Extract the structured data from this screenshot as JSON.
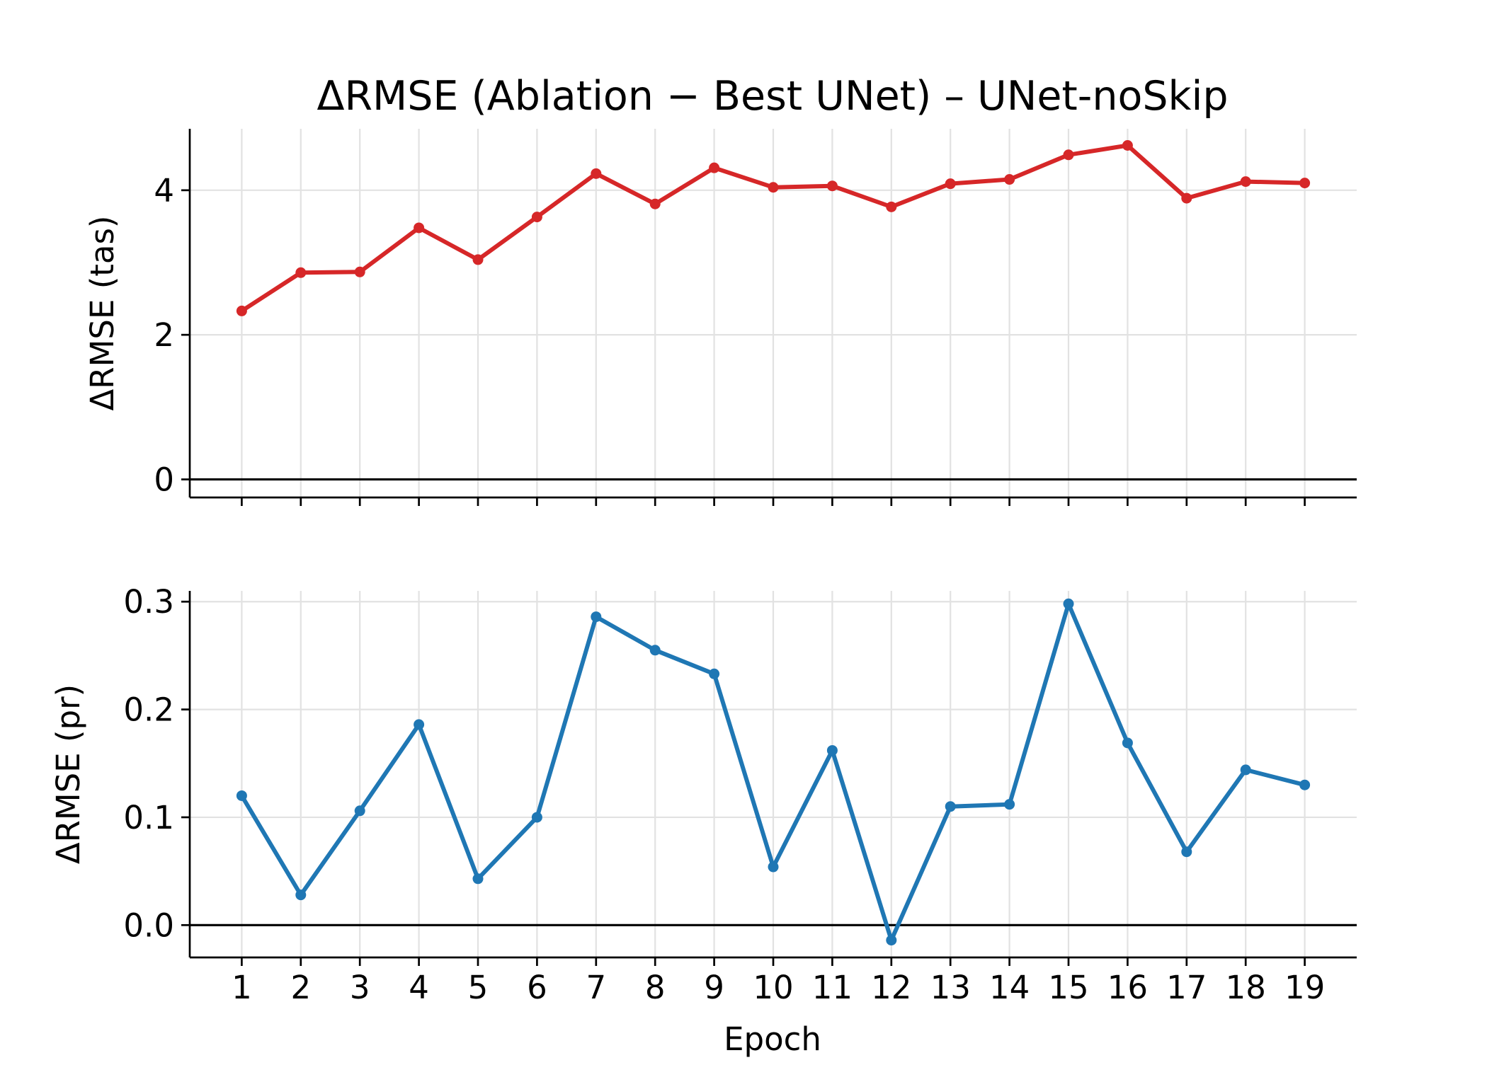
{
  "chart_data": {
    "type": "line",
    "title": "ΔRMSE (Ablation − Best UNet) – UNet-noSkip",
    "xlabel": "Epoch",
    "x": [
      1,
      2,
      3,
      4,
      5,
      6,
      7,
      8,
      9,
      10,
      11,
      12,
      13,
      14,
      15,
      16,
      17,
      18,
      19
    ],
    "grid": true,
    "reference_line": 0,
    "panels": [
      {
        "ylabel": "ΔRMSE (tas)",
        "ylim": [
          -0.25,
          4.85
        ],
        "yticks": [
          0,
          2,
          4
        ],
        "ytick_labels": [
          "0",
          "2",
          "4"
        ],
        "color": "#d62728",
        "values": [
          2.33,
          2.86,
          2.87,
          3.48,
          3.04,
          3.63,
          4.23,
          3.81,
          4.31,
          4.04,
          4.06,
          3.77,
          4.09,
          4.15,
          4.49,
          4.62,
          3.89,
          4.12,
          4.1
        ]
      },
      {
        "ylabel": "ΔRMSE (pr)",
        "ylim": [
          -0.03,
          0.31
        ],
        "yticks": [
          0.0,
          0.1,
          0.2,
          0.3
        ],
        "ytick_labels": [
          "0.0",
          "0.1",
          "0.2",
          "0.3"
        ],
        "color": "#1f77b4",
        "values": [
          0.12,
          0.028,
          0.106,
          0.186,
          0.043,
          0.1,
          0.286,
          0.255,
          0.233,
          0.054,
          0.162,
          -0.014,
          0.11,
          0.112,
          0.298,
          0.169,
          0.068,
          0.144,
          0.13
        ]
      }
    ]
  }
}
